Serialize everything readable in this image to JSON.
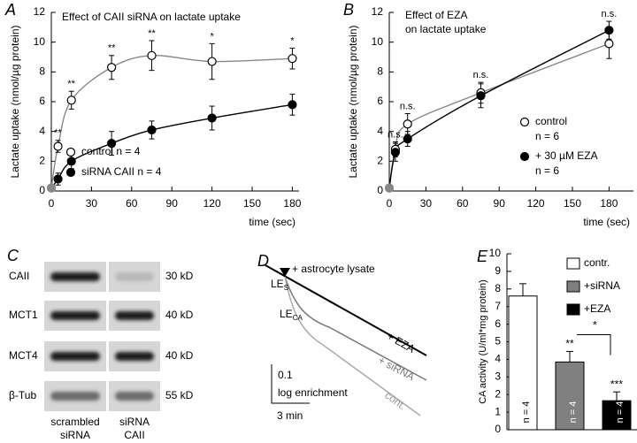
{
  "chart_data": [
    {
      "type": "scatter",
      "panel": "A",
      "title": "Effect of CAII siRNA on lactate uptake",
      "x_label": "time (sec)",
      "y_label": "Lactate uptake (nmol/µg protein)",
      "x": [
        0,
        5,
        15,
        45,
        75,
        120,
        180
      ],
      "xlim": [
        0,
        185
      ],
      "xticks": [
        0,
        30,
        60,
        90,
        120,
        150,
        180
      ],
      "ylim": [
        0,
        12
      ],
      "yticks": [
        0,
        2,
        4,
        6,
        8,
        10,
        12
      ],
      "origin_color": "#888888",
      "legend": "lower left",
      "series": [
        {
          "name": "control n = 4",
          "marker": "open",
          "color": "#888888",
          "values": [
            0.2,
            3.0,
            6.1,
            8.3,
            9.1,
            8.7,
            8.9
          ],
          "errors": [
            null,
            0.4,
            0.6,
            0.8,
            1.0,
            1.2,
            0.7
          ]
        },
        {
          "name": "siRNA CAII n = 4",
          "marker": "filled",
          "color": "#000000",
          "values": [
            0.2,
            0.8,
            2.0,
            3.2,
            4.1,
            4.9,
            5.8
          ],
          "errors": [
            null,
            0.4,
            0.5,
            0.8,
            0.6,
            0.8,
            0.7
          ]
        }
      ],
      "significance": [
        {
          "x": 5,
          "label": "**"
        },
        {
          "x": 15,
          "label": "**"
        },
        {
          "x": 45,
          "label": "**"
        },
        {
          "x": 75,
          "label": "**"
        },
        {
          "x": 120,
          "label": "*"
        },
        {
          "x": 180,
          "label": "*"
        }
      ]
    },
    {
      "type": "scatter",
      "panel": "B",
      "title": [
        "Effect of EZA",
        "on lactate uptake"
      ],
      "x_label": "time (sec)",
      "y_label": "Lactate uptake (nmol/µg protein)",
      "x": [
        0,
        5,
        15,
        75,
        180
      ],
      "xlim": [
        0,
        200
      ],
      "xticks": [
        0,
        30,
        60,
        90,
        120,
        150,
        180
      ],
      "ylim": [
        0,
        12
      ],
      "yticks": [
        0,
        2,
        4,
        6,
        8,
        10,
        12
      ],
      "origin_color": "#888888",
      "legend": "lower right",
      "series": [
        {
          "name": "control",
          "note": "n = 6",
          "marker": "open",
          "color": "#888888",
          "values": [
            0.2,
            2.8,
            4.5,
            6.6,
            9.9
          ],
          "errors": [
            null,
            0.5,
            0.7,
            0.7,
            1.0
          ]
        },
        {
          "name": "+ 30 µM EZA",
          "note": "n = 6",
          "marker": "filled",
          "color": "#000000",
          "values": [
            0.2,
            2.6,
            3.5,
            6.4,
            10.8
          ],
          "errors": [
            null,
            0.6,
            0.5,
            0.8,
            0.6
          ]
        }
      ],
      "significance": [
        {
          "x": 5,
          "label": "n.s."
        },
        {
          "x": 15,
          "label": "n.s."
        },
        {
          "x": 75,
          "label": "n.s."
        },
        {
          "x": 180,
          "label": "n.s."
        }
      ]
    },
    {
      "type": "bar",
      "panel": "E",
      "y_label": "CA activity (U/ml*mg protein)",
      "categories": [
        "contr.",
        "+siRNA",
        "+EZA"
      ],
      "values": [
        7.6,
        3.85,
        1.65
      ],
      "errors": [
        0.7,
        0.6,
        0.5
      ],
      "colors": [
        "#ffffff",
        "#808080",
        "#000000"
      ],
      "ylim": [
        0,
        10
      ],
      "yticks": [
        0,
        1,
        2,
        3,
        4,
        5,
        6,
        7,
        8,
        9,
        10
      ],
      "n_labels": [
        "n = 4",
        "n = 4",
        "n = 4"
      ],
      "significance": [
        null,
        "**",
        "***"
      ],
      "comparison": {
        "from": "+siRNA",
        "to": "+EZA",
        "label": "*"
      },
      "legend": "upper right"
    }
  ],
  "blot": {
    "panel": "C",
    "rows": [
      {
        "label": "CAII",
        "size": "30 kD"
      },
      {
        "label": "MCT1",
        "size": "40 kD"
      },
      {
        "label": "MCT4",
        "size": "40 kD"
      },
      {
        "label": "β-Tub",
        "size": "55 kD"
      }
    ],
    "columns": [
      [
        "scrambled",
        "siRNA"
      ],
      [
        "siRNA",
        "CAII"
      ]
    ]
  },
  "trace": {
    "panel": "D",
    "addition": "+ astrocyte lysate",
    "le_s": {
      "text": "LE",
      "sub": "S"
    },
    "le_ca": {
      "text": "LE",
      "sub": "CA"
    },
    "traces": [
      "+ EZA",
      "+ siRNA",
      "cont."
    ],
    "scale_y": "0.1",
    "scale_y_label": "log enrichment",
    "scale_x": "3 min"
  }
}
